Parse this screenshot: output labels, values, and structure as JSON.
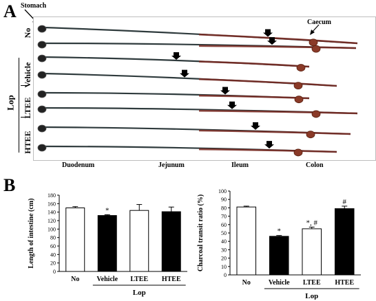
{
  "panel_a": {
    "letter": "A",
    "stomach_label": "Stomach",
    "caecum_label": "Caecum",
    "group_no": "No",
    "group_vehicle": "Vehicle",
    "group_ltee": "LTEE",
    "group_htee": "HTEE",
    "group_lop": "Lop",
    "segments": [
      "Duodenum",
      "Jejunum",
      "Ileum",
      "Colon"
    ],
    "colors": {
      "intestine_dark": "#2e3a3c",
      "intestine_red": "#7a2a22",
      "caecum": "#8a3a28"
    }
  },
  "panel_b": {
    "letter": "B"
  },
  "chart_data": [
    {
      "type": "bar",
      "categories": [
        "No",
        "Vehicle",
        "LTEE",
        "HTEE"
      ],
      "values": [
        150,
        132,
        144,
        141
      ],
      "errors": [
        3,
        2,
        14,
        11
      ],
      "fills": [
        "#ffffff",
        "#000000",
        "#ffffff",
        "#000000"
      ],
      "annotations": [
        "",
        "*",
        "",
        ""
      ],
      "group_label": "Lop",
      "ylabel": "Length of intestine (cm)",
      "ylim": [
        0,
        180
      ],
      "yticks": [
        0,
        20,
        40,
        60,
        80,
        100,
        120,
        140,
        160,
        180
      ]
    },
    {
      "type": "bar",
      "categories": [
        "No",
        "Vehicle",
        "LTEE",
        "HTEE"
      ],
      "values": [
        81,
        46,
        55,
        79
      ],
      "errors": [
        1,
        1,
        2,
        3
      ],
      "fills": [
        "#ffffff",
        "#000000",
        "#ffffff",
        "#000000"
      ],
      "annotations": [
        "",
        "*",
        "*, #",
        "#"
      ],
      "group_label": "Lop",
      "ylabel": "Charcoal transit ratio (%)",
      "ylim": [
        0,
        100
      ],
      "yticks": [
        0,
        10,
        20,
        30,
        40,
        50,
        60,
        70,
        80,
        90,
        100
      ]
    }
  ]
}
